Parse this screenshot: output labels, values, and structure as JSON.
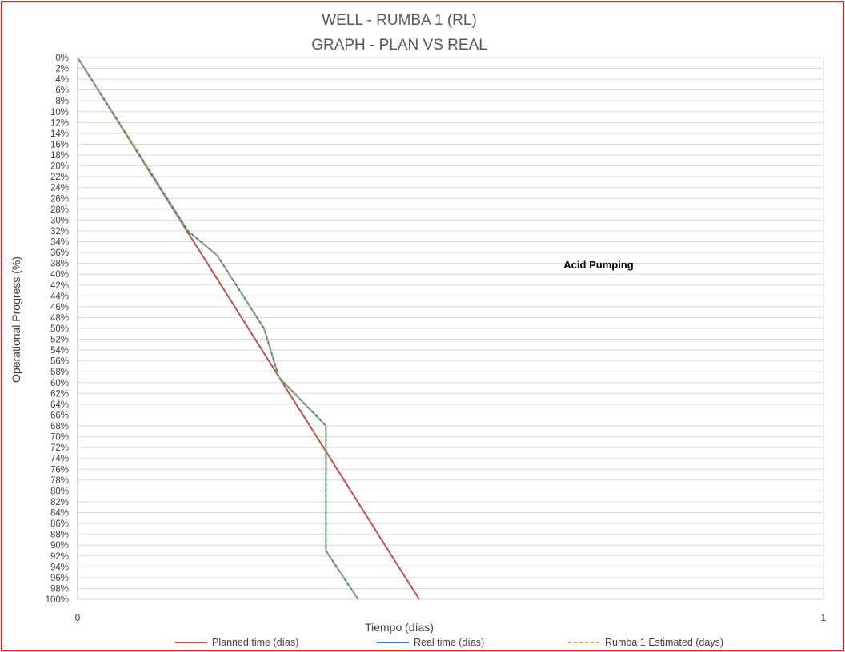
{
  "chart_data": {
    "type": "line",
    "title": [
      "WELL -  RUMBA 1 (RL)",
      "GRAPH  - PLAN VS REAL"
    ],
    "xlabel": "Tiempo (días)",
    "ylabel": "Operational Progress (%)",
    "xlim": [
      0,
      1
    ],
    "ylim": [
      0,
      100
    ],
    "y_inverted": true,
    "x_tick_labels": [
      "0",
      "1"
    ],
    "y_tick_labels": [
      "0%",
      "2%",
      "4%",
      "6%",
      "8%",
      "10%",
      "12%",
      "14%",
      "16%",
      "18%",
      "20%",
      "22%",
      "24%",
      "26%",
      "28%",
      "30%",
      "32%",
      "34%",
      "36%",
      "38%",
      "40%",
      "42%",
      "44%",
      "46%",
      "48%",
      "50%",
      "52%",
      "54%",
      "56%",
      "58%",
      "60%",
      "62%",
      "64%",
      "66%",
      "68%",
      "70%",
      "72%",
      "74%",
      "76%",
      "78%",
      "80%",
      "82%",
      "84%",
      "86%",
      "88%",
      "90%",
      "92%",
      "94%",
      "96%",
      "98%",
      "100%"
    ],
    "grid": true,
    "legend_position": "bottom",
    "annotations": [
      {
        "text": "Acid Pumping",
        "x": 0.67,
        "y": 38.5
      }
    ],
    "series": [
      {
        "name": "Planned time (días)",
        "color": "#c0504d",
        "style": "solid",
        "points": [
          [
            0,
            0
          ],
          [
            0.458,
            100
          ]
        ]
      },
      {
        "name": "Real time (días)",
        "color": "#4472c4",
        "style": "solid",
        "points": [
          [
            0,
            0
          ],
          [
            0.148,
            32
          ],
          [
            0.187,
            36.5
          ],
          [
            0.25,
            50
          ],
          [
            0.27,
            59
          ],
          [
            0.333,
            68
          ],
          [
            0.333,
            91
          ],
          [
            0.376,
            100
          ]
        ]
      },
      {
        "name": "Rumba 1 Estimated (days)",
        "color": "#9bbb59",
        "style": "dashed",
        "points": [
          [
            0,
            0
          ],
          [
            0.148,
            32
          ],
          [
            0.187,
            36.5
          ],
          [
            0.25,
            50
          ],
          [
            0.27,
            59
          ],
          [
            0.333,
            68
          ],
          [
            0.333,
            91
          ],
          [
            0.376,
            100
          ]
        ]
      }
    ]
  }
}
